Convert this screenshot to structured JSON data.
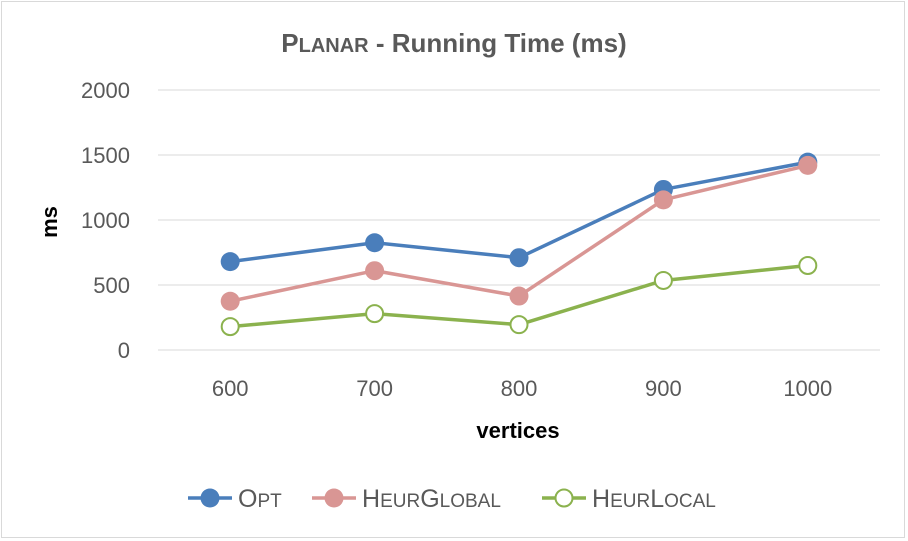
{
  "chart_data": {
    "type": "line",
    "title": "Planar - Running Time (ms)",
    "title_parts": {
      "lead": "P",
      "smallcaps": "LANAR",
      "rest": " - Running Time (ms)"
    },
    "xlabel": "vertices",
    "ylabel": "ms",
    "categories": [
      "600",
      "700",
      "800",
      "900",
      "1000"
    ],
    "ylim": [
      0,
      2000
    ],
    "yticks": [
      0,
      500,
      1000,
      1500,
      2000
    ],
    "grid": true,
    "legend_position": "bottom",
    "series": [
      {
        "name": "Opt",
        "name_parts": {
          "lead": "O",
          "smallcaps": "PT",
          "lead2": "",
          "smallcaps2": ""
        },
        "values": [
          680,
          825,
          710,
          1235,
          1445
        ],
        "color": "#4a7ebb",
        "marker": "filled-circle"
      },
      {
        "name": "HeurGlobal",
        "name_parts": {
          "lead": "H",
          "smallcaps": "EUR",
          "lead2": "G",
          "smallcaps2": "LOBAL"
        },
        "values": [
          375,
          610,
          415,
          1155,
          1420
        ],
        "color": "#d99694",
        "marker": "filled-circle"
      },
      {
        "name": "HeurLocal",
        "name_parts": {
          "lead": "H",
          "smallcaps": "EUR",
          "lead2": "L",
          "smallcaps2": "OCAL"
        },
        "values": [
          180,
          280,
          195,
          535,
          650
        ],
        "color": "#8bb24e",
        "marker": "hollow-circle"
      }
    ]
  }
}
